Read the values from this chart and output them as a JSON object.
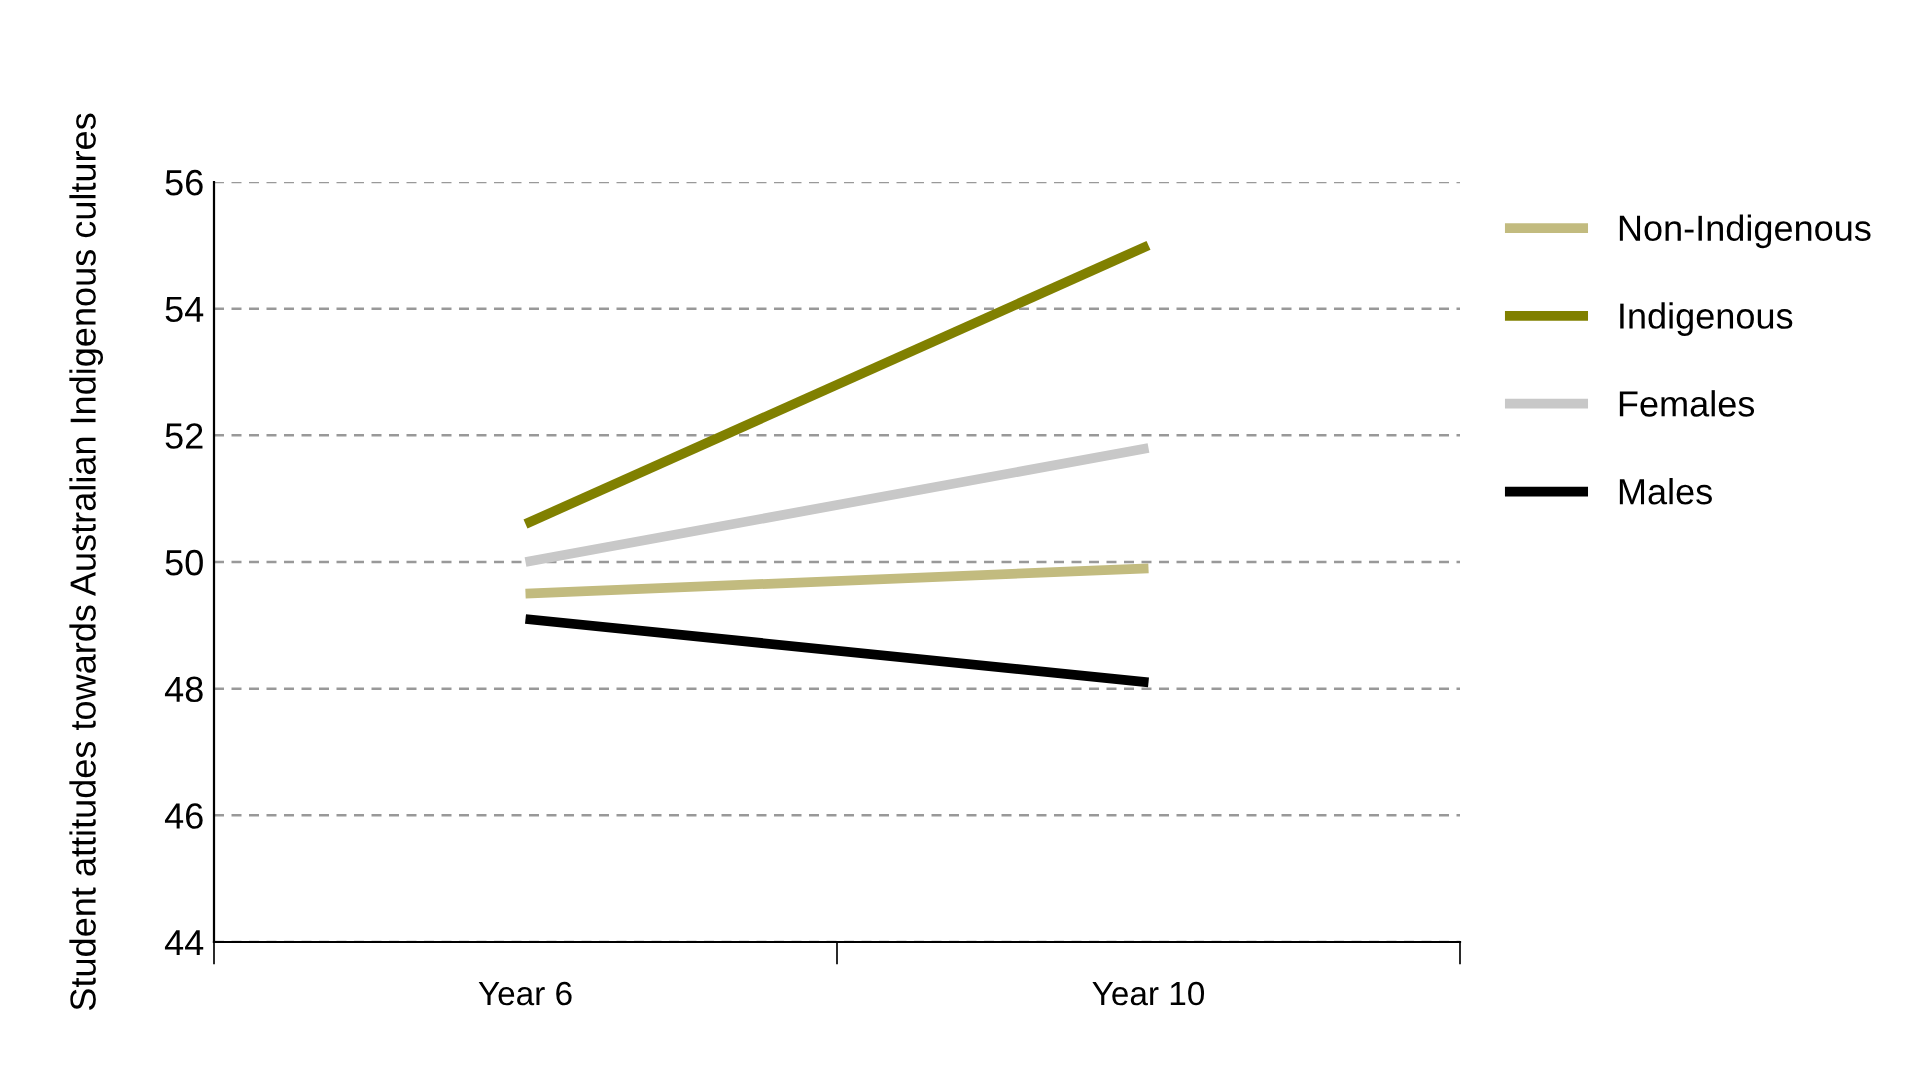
{
  "chart_data": {
    "type": "line",
    "ylabel": "Student attitudes towards Australian Indigenous cultures",
    "categories": [
      "Year 6",
      "Year 10"
    ],
    "series": [
      {
        "name": "Non-Indigenous",
        "color": "#c2bb7f",
        "values": [
          49.5,
          49.9
        ]
      },
      {
        "name": "Indigenous",
        "color": "#808000",
        "values": [
          50.6,
          55.0
        ]
      },
      {
        "name": "Females",
        "color": "#c8c8c8",
        "values": [
          50.0,
          51.8
        ]
      },
      {
        "name": "Males",
        "color": "#000000",
        "values": [
          49.1,
          48.1
        ]
      }
    ],
    "ylim": [
      44,
      56
    ],
    "yticks": [
      44,
      46,
      48,
      50,
      52,
      54,
      56
    ],
    "grid": "y",
    "legend": "right",
    "marker": "none",
    "line_style": "solid"
  }
}
